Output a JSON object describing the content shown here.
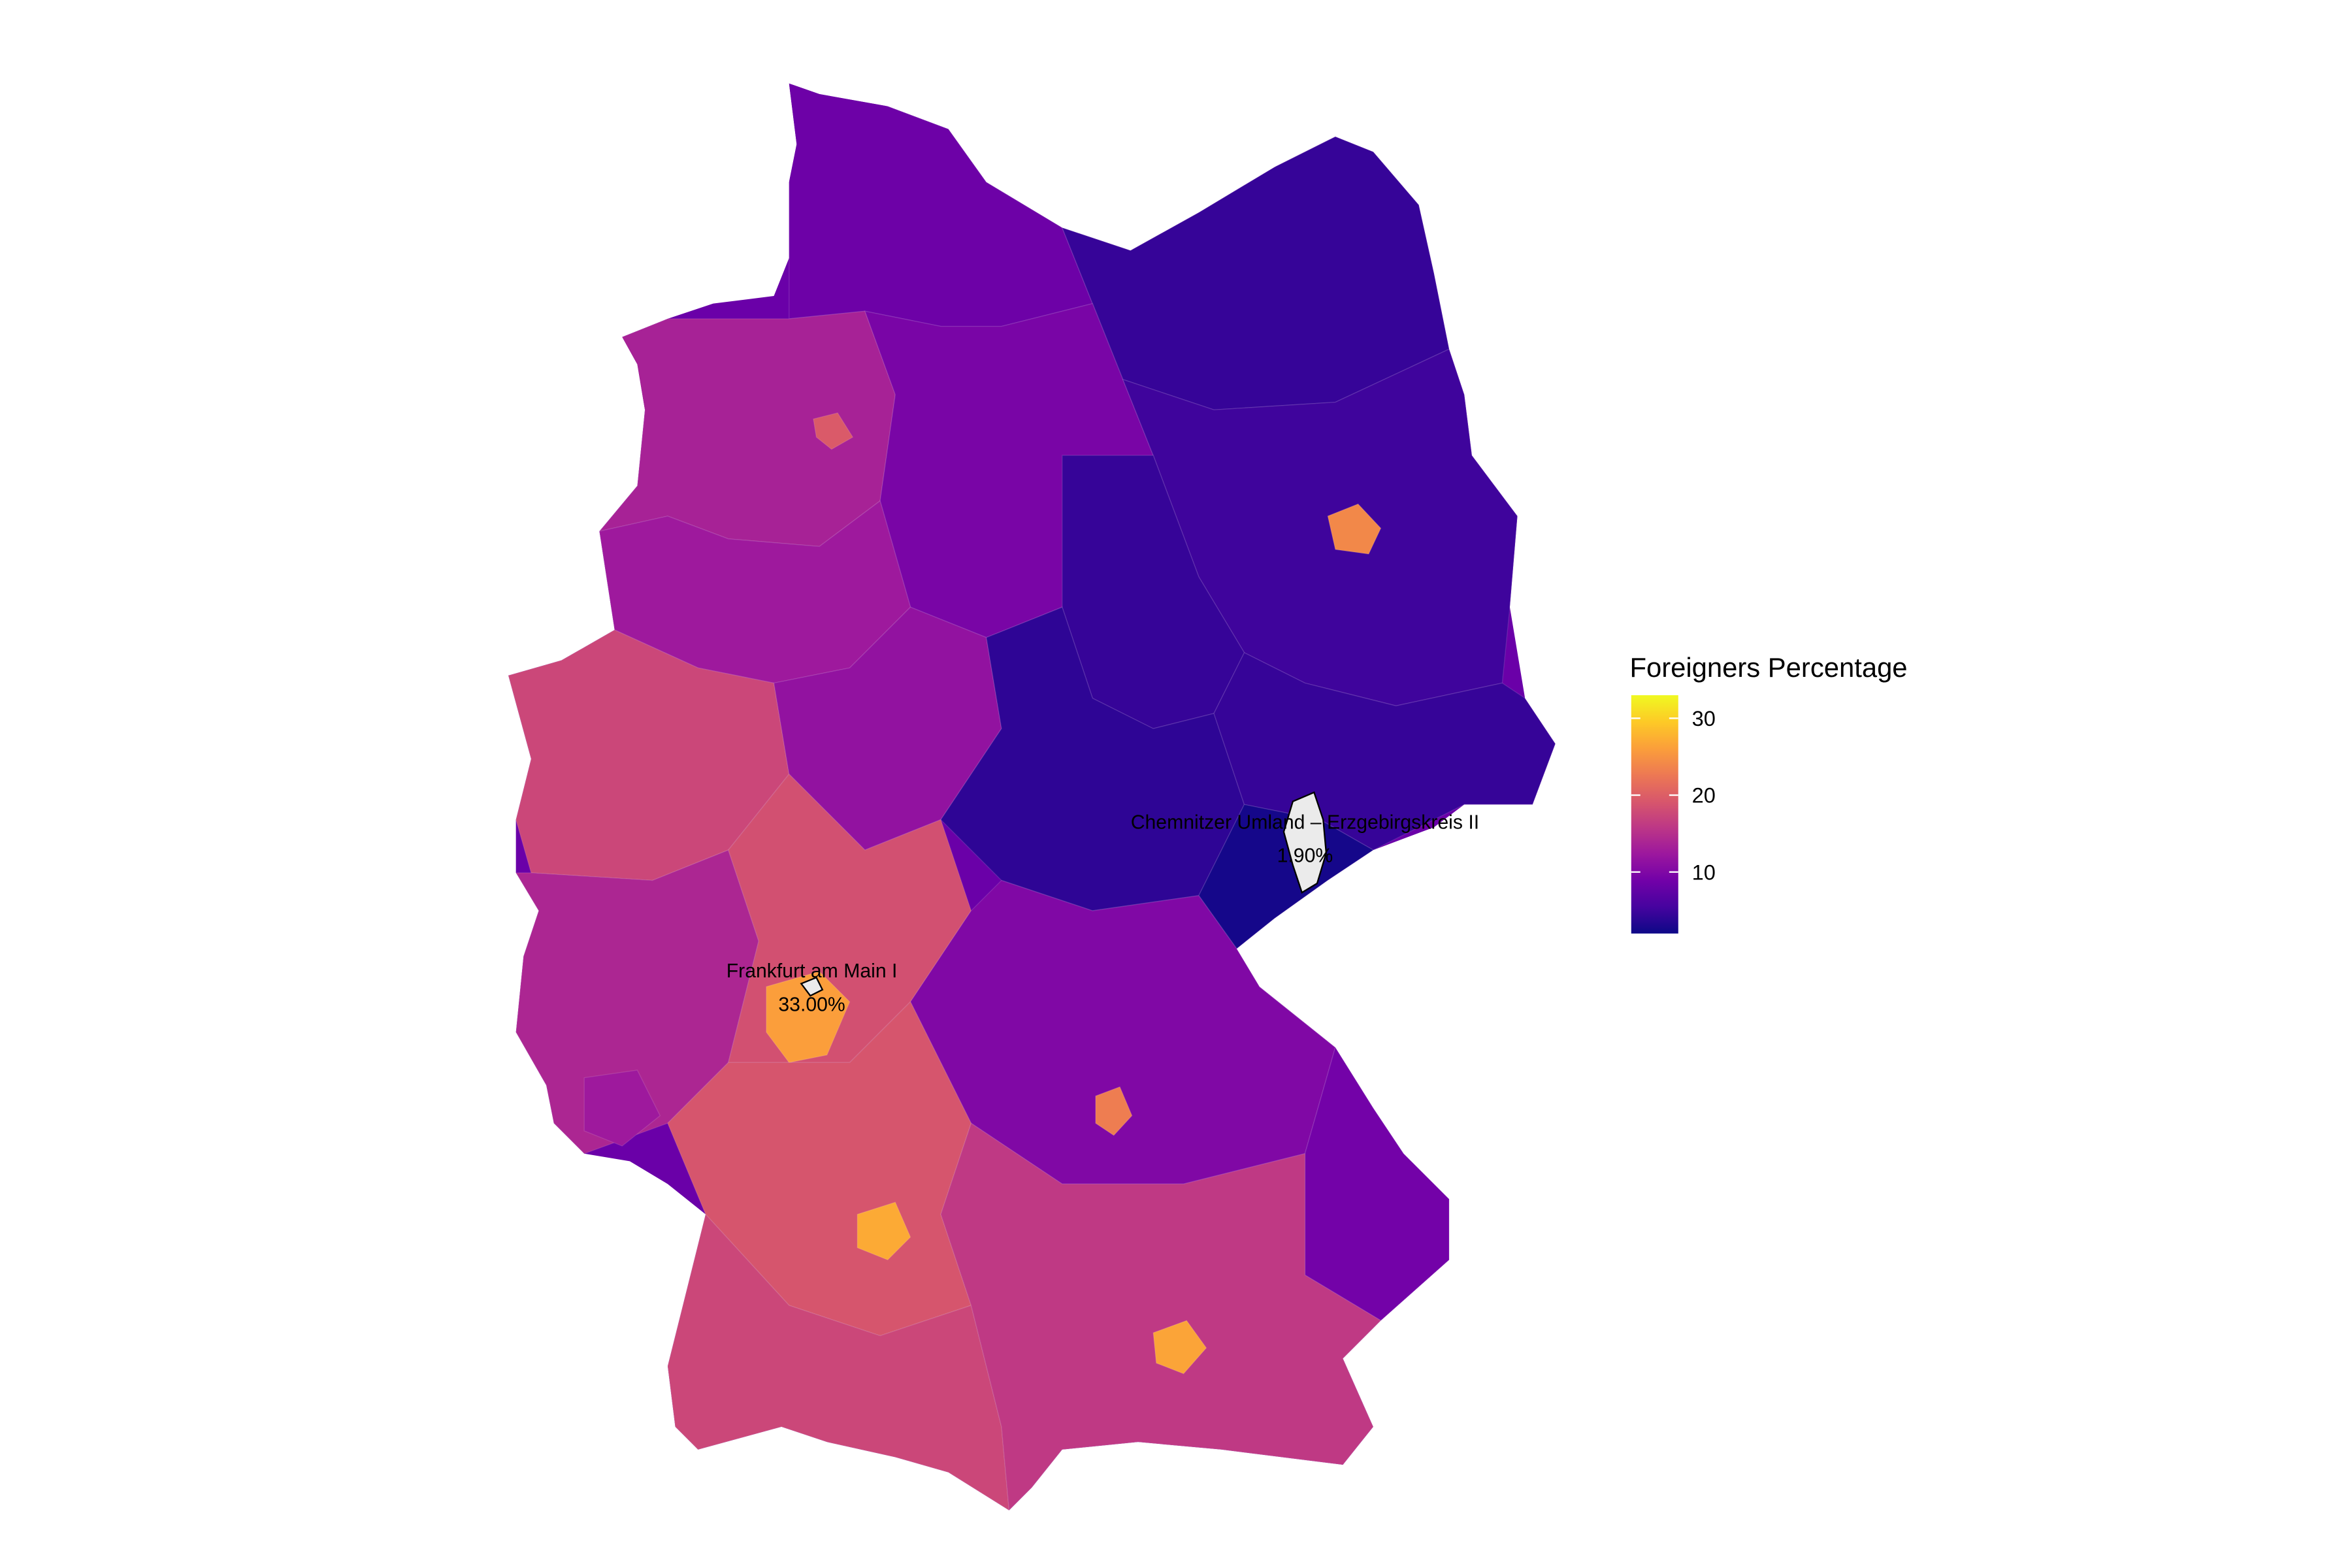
{
  "map": {
    "legend": {
      "title": "Foreigners Percentage",
      "ticks": [
        10,
        20,
        30
      ],
      "min": 2.0,
      "max": 33.0,
      "colors": [
        "#0d0887",
        "#46039f",
        "#7201a8",
        "#9c179e",
        "#bd3786",
        "#d8576b",
        "#ed7953",
        "#fb9f3a",
        "#fdca26",
        "#f0f921"
      ]
    },
    "highlights": [
      {
        "name": "Frankfurt am Main I",
        "value_text": "33.00%",
        "value": 33.0
      },
      {
        "name": "Chemnitzer Umland – Erzgebirgskreis II",
        "value_text": "1.90%",
        "value": 1.9
      }
    ],
    "regions": [
      {
        "id": "schleswig-holstein",
        "value": 8.5
      },
      {
        "id": "hamburg",
        "value": 17.5
      },
      {
        "id": "mecklenburg-vorpommern",
        "value": 4.5
      },
      {
        "id": "niedersachsen-west",
        "value": 13.5
      },
      {
        "id": "niedersachsen-east",
        "value": 9.5
      },
      {
        "id": "bremen",
        "value": 19.5
      },
      {
        "id": "brandenburg",
        "value": 5.0
      },
      {
        "id": "berlin",
        "value": 24.0
      },
      {
        "id": "sachsen-anhalt",
        "value": 4.5
      },
      {
        "id": "nrw-north",
        "value": 12.5
      },
      {
        "id": "nrw-ruhr",
        "value": 21.5
      },
      {
        "id": "nrw-south",
        "value": 17.5
      },
      {
        "id": "hessen-north",
        "value": 11.5
      },
      {
        "id": "thueringen",
        "value": 4.0
      },
      {
        "id": "sachsen",
        "value": 4.5
      },
      {
        "id": "sachsen-erzgebirge",
        "value": 2.5
      },
      {
        "id": "rheinland-pfalz",
        "value": 14.0
      },
      {
        "id": "saarland",
        "value": 12.5
      },
      {
        "id": "hessen-south",
        "value": 18.5
      },
      {
        "id": "frankfurt-region",
        "value": 26.0
      },
      {
        "id": "bayern-north",
        "value": 10.0
      },
      {
        "id": "nuernberg",
        "value": 23.0
      },
      {
        "id": "bayern-east",
        "value": 9.0
      },
      {
        "id": "bayern-south",
        "value": 16.0
      },
      {
        "id": "muenchen",
        "value": 26.5
      },
      {
        "id": "bw-north",
        "value": 19.0
      },
      {
        "id": "stuttgart",
        "value": 27.0
      },
      {
        "id": "bw-south",
        "value": 17.5
      }
    ]
  }
}
